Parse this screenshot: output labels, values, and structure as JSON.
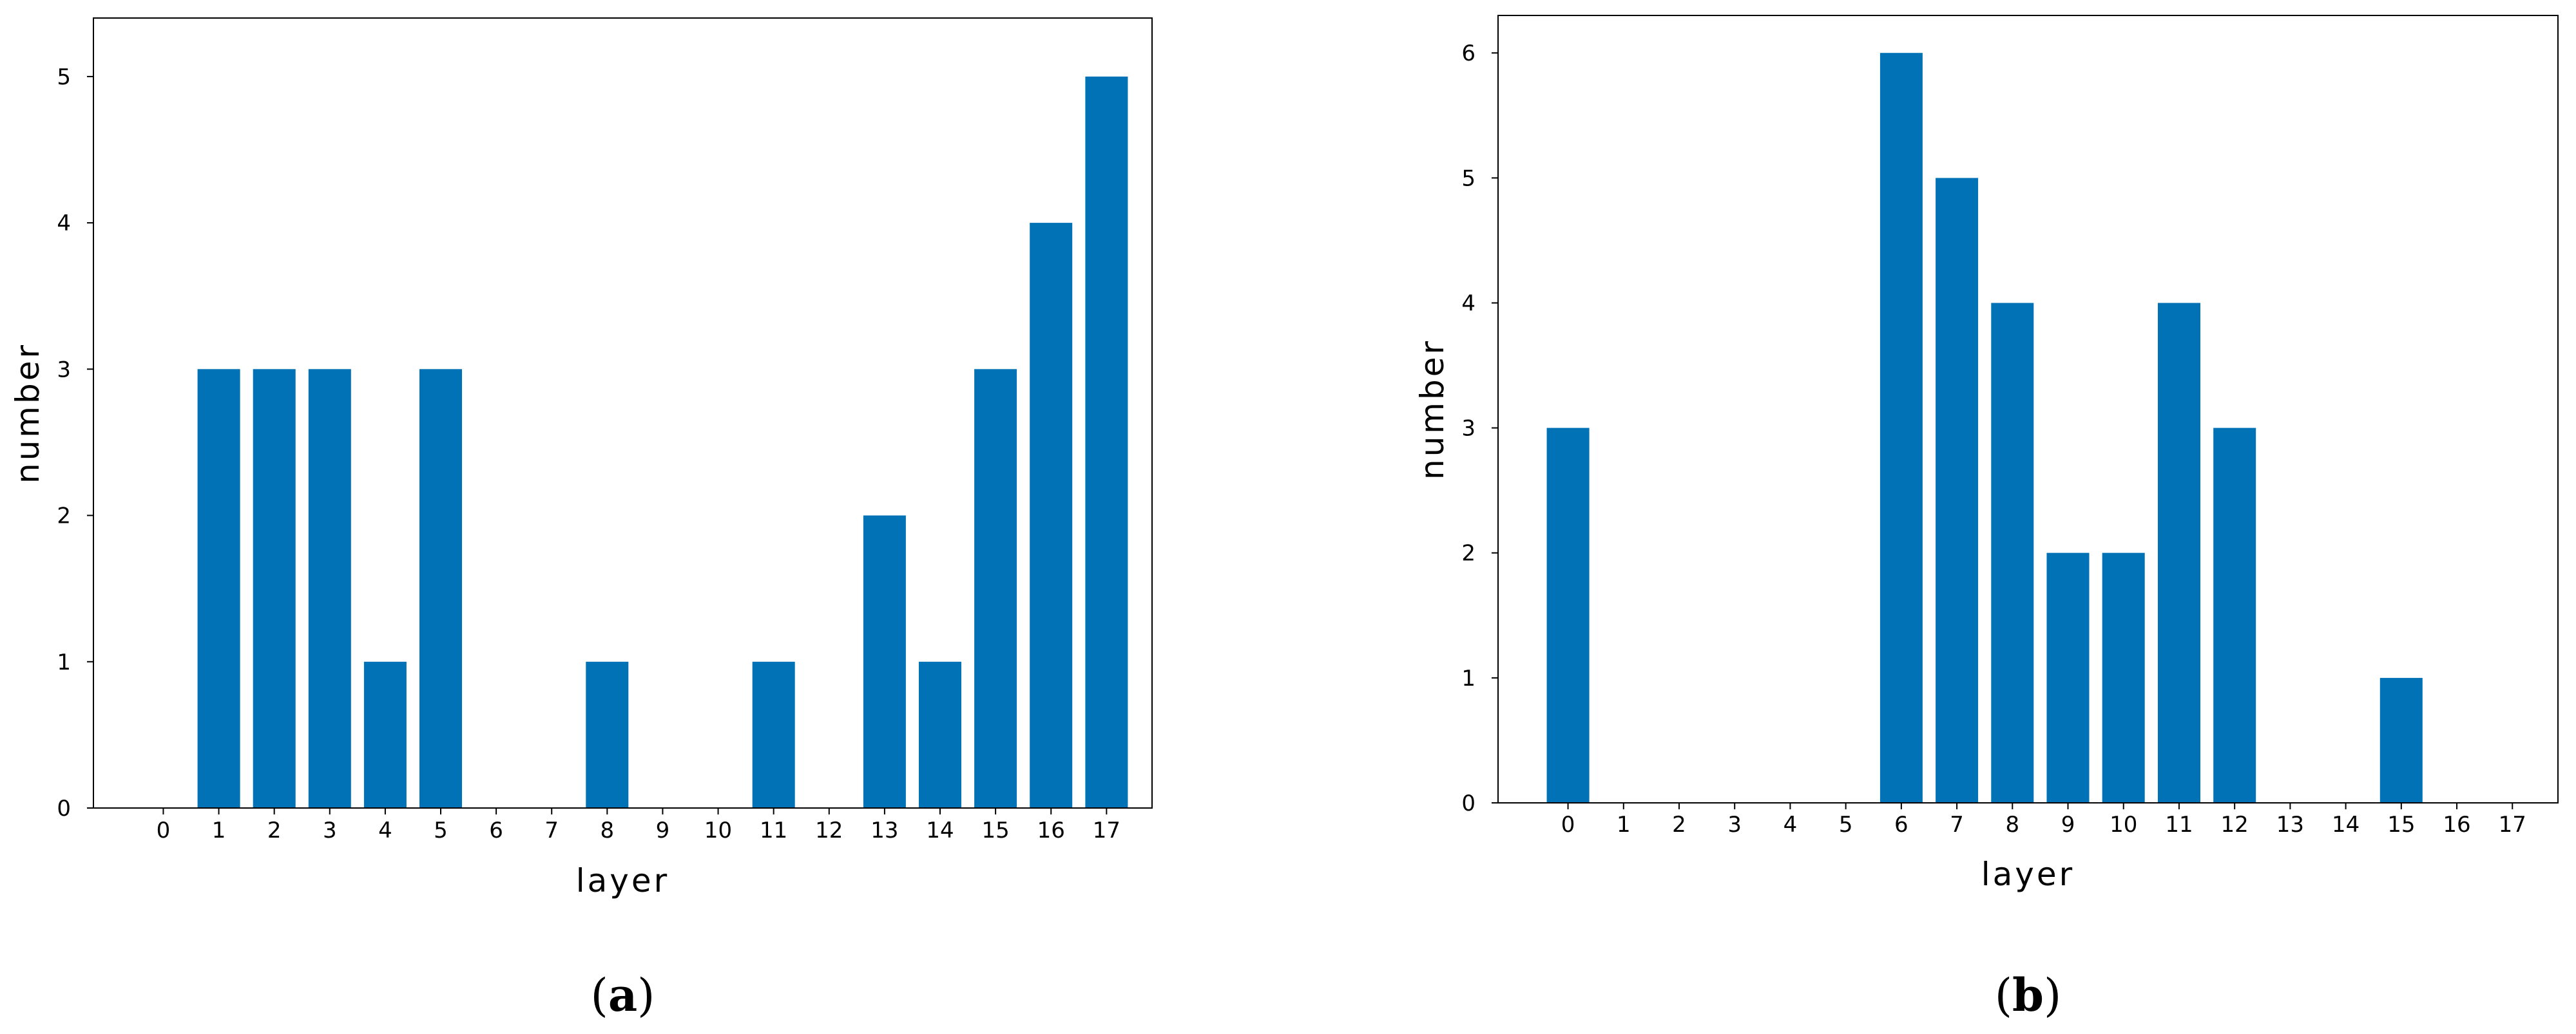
{
  "chart_data": [
    {
      "type": "bar",
      "panel": "a",
      "caption_open": "(",
      "caption_letter": "a",
      "caption_close": ")",
      "xlabel": "layer",
      "ylabel": "number",
      "categories": [
        "0",
        "1",
        "2",
        "3",
        "4",
        "5",
        "6",
        "7",
        "8",
        "9",
        "10",
        "11",
        "12",
        "13",
        "14",
        "15",
        "16",
        "17"
      ],
      "values": [
        0,
        3,
        3,
        3,
        1,
        3,
        0,
        0,
        1,
        0,
        0,
        1,
        0,
        2,
        1,
        3,
        4,
        5
      ],
      "yticks": [
        0,
        1,
        2,
        3,
        4,
        5
      ],
      "ylim": [
        0,
        5.4
      ],
      "color": "#0072b5",
      "grid": false,
      "legend": "none"
    },
    {
      "type": "bar",
      "panel": "b",
      "caption_open": "(",
      "caption_letter": "b",
      "caption_close": ")",
      "xlabel": "layer",
      "ylabel": "number",
      "categories": [
        "0",
        "1",
        "2",
        "3",
        "4",
        "5",
        "6",
        "7",
        "8",
        "9",
        "10",
        "11",
        "12",
        "13",
        "14",
        "15",
        "16",
        "17"
      ],
      "values": [
        3,
        0,
        0,
        0,
        0,
        0,
        6,
        5,
        4,
        2,
        2,
        4,
        3,
        0,
        0,
        1,
        0,
        0
      ],
      "yticks": [
        0,
        1,
        2,
        3,
        4,
        5,
        6
      ],
      "ylim": [
        0,
        6.3
      ],
      "color": "#0072b5",
      "grid": false,
      "legend": "none"
    }
  ]
}
